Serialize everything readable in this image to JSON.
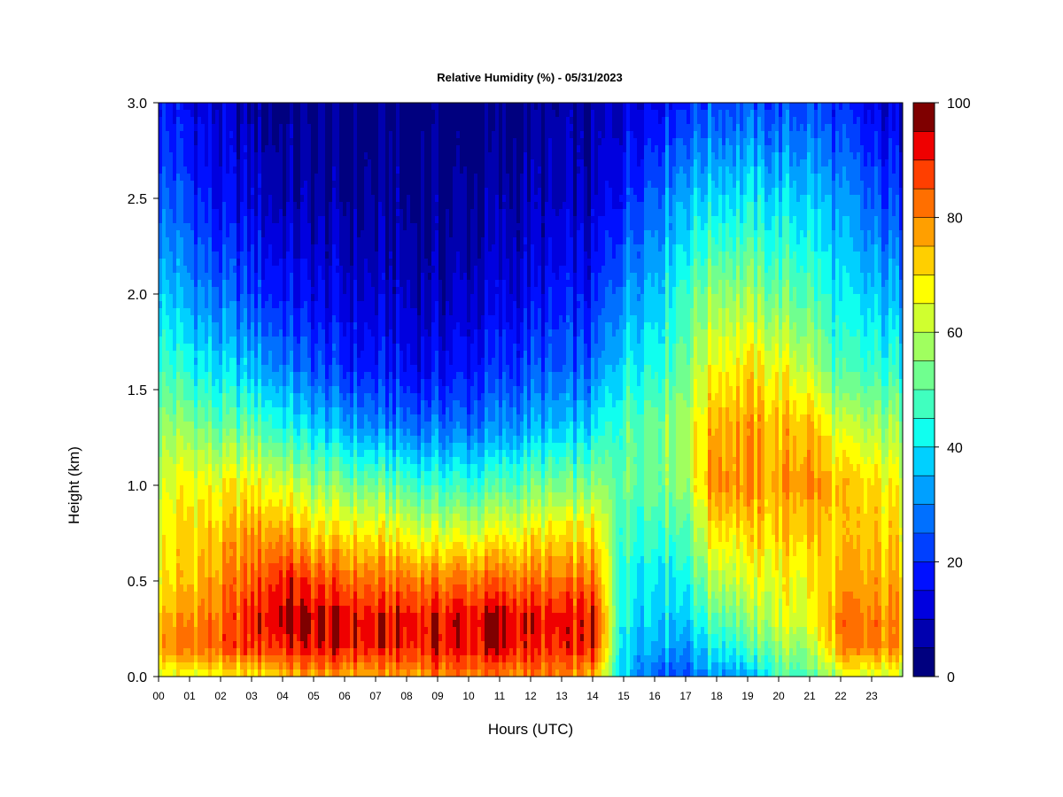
{
  "chart_data": {
    "type": "heatmap",
    "title": "Relative Humidity (%) - 05/31/2023",
    "xlabel": "Hours (UTC)",
    "ylabel": "Height (km)",
    "x_ticks": [
      "00",
      "01",
      "02",
      "03",
      "04",
      "05",
      "06",
      "07",
      "08",
      "09",
      "10",
      "11",
      "12",
      "13",
      "14",
      "15",
      "16",
      "17",
      "18",
      "19",
      "20",
      "21",
      "22",
      "23"
    ],
    "y_ticks": [
      "0.0",
      "0.5",
      "1.0",
      "1.5",
      "2.0",
      "2.5",
      "3.0"
    ],
    "xlim": [
      0,
      24
    ],
    "ylim": [
      0.0,
      3.0
    ],
    "colorbar": {
      "ticks": [
        "0",
        "20",
        "40",
        "60",
        "80",
        "100"
      ],
      "range": [
        0,
        100
      ],
      "levels": 20,
      "colors": [
        "#00007f",
        "#0000af",
        "#0000df",
        "#0010ff",
        "#0040ff",
        "#0070ff",
        "#00a0ff",
        "#00d0ff",
        "#10ffef",
        "#40ffbf",
        "#70ff8f",
        "#a0ff5f",
        "#d0ff2f",
        "#ffff00",
        "#ffcf00",
        "#ff9f00",
        "#ff6f00",
        "#ff3f00",
        "#ef0000",
        "#7f0000"
      ]
    },
    "hours": [
      0,
      1,
      2,
      3,
      4,
      5,
      6,
      7,
      8,
      9,
      10,
      11,
      12,
      13,
      14,
      15,
      16,
      17,
      18,
      19,
      20,
      21,
      22,
      23,
      24
    ],
    "heights_km": [
      0.0,
      0.15,
      0.3,
      0.5,
      0.75,
      1.0,
      1.3,
      1.6,
      2.0,
      2.5,
      3.0
    ],
    "values_pct": [
      [
        62,
        78,
        74,
        68,
        66,
        62,
        56,
        48,
        38,
        26,
        18
      ],
      [
        66,
        82,
        80,
        74,
        72,
        68,
        56,
        44,
        32,
        22,
        14
      ],
      [
        66,
        84,
        82,
        78,
        72,
        66,
        50,
        38,
        26,
        14,
        10
      ],
      [
        68,
        88,
        90,
        84,
        78,
        68,
        52,
        36,
        22,
        12,
        6
      ],
      [
        74,
        90,
        96,
        92,
        78,
        64,
        44,
        30,
        18,
        8,
        3
      ],
      [
        76,
        92,
        95,
        86,
        70,
        56,
        38,
        24,
        14,
        6,
        2
      ],
      [
        76,
        92,
        94,
        84,
        70,
        54,
        34,
        20,
        12,
        5,
        2
      ],
      [
        76,
        90,
        92,
        82,
        68,
        52,
        30,
        18,
        10,
        5,
        2
      ],
      [
        78,
        90,
        92,
        82,
        66,
        48,
        28,
        16,
        10,
        4,
        2
      ],
      [
        80,
        92,
        92,
        82,
        64,
        46,
        28,
        16,
        8,
        4,
        1
      ],
      [
        82,
        92,
        94,
        82,
        64,
        46,
        28,
        18,
        10,
        5,
        1
      ],
      [
        80,
        94,
        95,
        84,
        66,
        48,
        30,
        20,
        12,
        6,
        2
      ],
      [
        80,
        90,
        92,
        82,
        68,
        52,
        34,
        24,
        14,
        8,
        3
      ],
      [
        78,
        88,
        90,
        80,
        68,
        52,
        34,
        24,
        16,
        8,
        4
      ],
      [
        76,
        90,
        92,
        82,
        70,
        54,
        38,
        26,
        16,
        8,
        4
      ],
      [
        36,
        40,
        42,
        44,
        48,
        52,
        50,
        42,
        32,
        20,
        12
      ],
      [
        28,
        36,
        40,
        42,
        48,
        54,
        54,
        46,
        38,
        28,
        16
      ],
      [
        26,
        32,
        38,
        44,
        50,
        58,
        60,
        54,
        48,
        36,
        20
      ],
      [
        34,
        44,
        52,
        62,
        72,
        82,
        78,
        70,
        58,
        40,
        24
      ],
      [
        32,
        46,
        54,
        62,
        70,
        78,
        76,
        70,
        56,
        40,
        24
      ],
      [
        48,
        56,
        64,
        66,
        72,
        76,
        74,
        66,
        52,
        38,
        22
      ],
      [
        50,
        58,
        66,
        68,
        74,
        80,
        76,
        62,
        50,
        38,
        24
      ],
      [
        60,
        78,
        80,
        74,
        70,
        72,
        60,
        46,
        38,
        30,
        18
      ],
      [
        62,
        80,
        80,
        76,
        72,
        70,
        58,
        46,
        36,
        24,
        12
      ],
      [
        62,
        78,
        78,
        74,
        70,
        66,
        56,
        44,
        32,
        20,
        10
      ]
    ],
    "grid": false,
    "legend": "colorbar-right"
  }
}
